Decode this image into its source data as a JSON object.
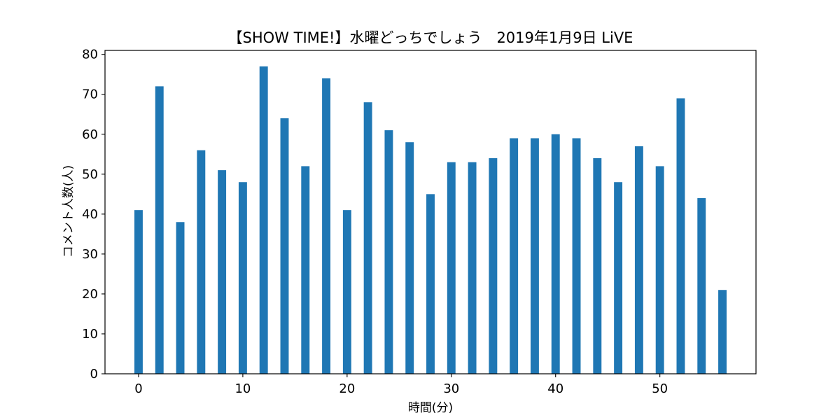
{
  "chart_data": {
    "type": "bar",
    "title": "【SHOW TIME!】水曜どっちでしょう　2019年1月9日 LiVE",
    "xlabel": "時間(分)",
    "ylabel": "コメント人数(人)",
    "x": [
      0,
      2,
      4,
      6,
      8,
      10,
      12,
      14,
      16,
      18,
      20,
      22,
      24,
      26,
      28,
      30,
      32,
      34,
      36,
      38,
      40,
      42,
      44,
      46,
      48,
      50,
      52,
      54,
      56
    ],
    "values": [
      41,
      72,
      38,
      56,
      51,
      48,
      77,
      64,
      52,
      74,
      41,
      68,
      61,
      58,
      45,
      53,
      53,
      54,
      59,
      59,
      60,
      59,
      54,
      48,
      57,
      52,
      69,
      44,
      21
    ],
    "bar_width": 0.8,
    "xlim": [
      -3.22,
      59.22
    ],
    "ylim": [
      0,
      81
    ],
    "xticks": [
      0,
      10,
      20,
      30,
      40,
      50
    ],
    "yticks": [
      0,
      10,
      20,
      30,
      40,
      50,
      60,
      70,
      80
    ],
    "grid": false,
    "bar_color": "#1f77b4"
  }
}
